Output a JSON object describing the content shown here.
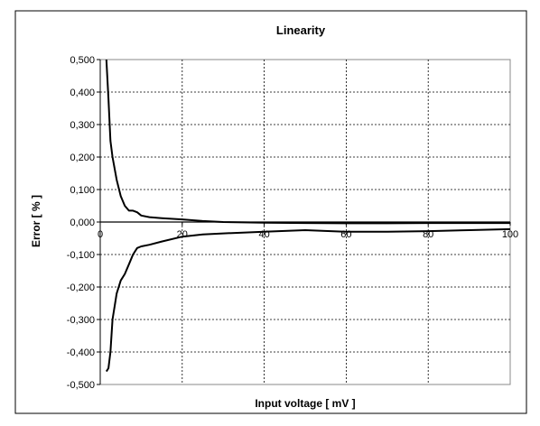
{
  "chart_data": {
    "type": "line",
    "title": "Linearity",
    "xlabel": "Input voltage [ mV ]",
    "ylabel": "Error [ % ]",
    "xlim": [
      0,
      100
    ],
    "ylim": [
      -0.5,
      0.5
    ],
    "x_ticks": [
      0,
      20,
      40,
      60,
      80,
      100
    ],
    "x_tick_labels": [
      "0",
      "20",
      "40",
      "60",
      "80",
      "100"
    ],
    "y_ticks": [
      0.5,
      0.4,
      0.3,
      0.2,
      0.1,
      0.0,
      -0.1,
      -0.2,
      -0.3,
      -0.4,
      -0.5
    ],
    "y_tick_labels": [
      "0,500",
      "0,400",
      "0,300",
      "0,200",
      "0,100",
      "0,000",
      "-0,100",
      "-0,200",
      "-0,300",
      "-0,400",
      "-0,500"
    ],
    "grid": true,
    "legend": "none",
    "series": [
      {
        "color": "#000000",
        "x": [
          1.5,
          2,
          2.5,
          3,
          4,
          5,
          6,
          7,
          8,
          9,
          10,
          12,
          15,
          20,
          25,
          30,
          40,
          50,
          60,
          70,
          80,
          90,
          100
        ],
        "y": [
          0.5,
          0.38,
          0.25,
          0.2,
          0.13,
          0.08,
          0.05,
          0.035,
          0.035,
          0.03,
          0.02,
          0.015,
          0.012,
          0.008,
          0.003,
          0.0,
          -0.002,
          -0.003,
          -0.004,
          -0.004,
          -0.003,
          -0.003,
          -0.003
        ]
      },
      {
        "color": "#000000",
        "x": [
          1.5,
          2,
          2.5,
          3,
          4,
          5,
          6,
          7,
          8,
          9,
          10,
          12,
          15,
          20,
          25,
          30,
          40,
          50,
          60,
          70,
          80,
          90,
          100
        ],
        "y": [
          -0.46,
          -0.45,
          -0.4,
          -0.3,
          -0.22,
          -0.18,
          -0.16,
          -0.13,
          -0.1,
          -0.08,
          -0.075,
          -0.07,
          -0.06,
          -0.045,
          -0.038,
          -0.035,
          -0.03,
          -0.025,
          -0.03,
          -0.03,
          -0.028,
          -0.025,
          -0.022
        ]
      }
    ]
  }
}
